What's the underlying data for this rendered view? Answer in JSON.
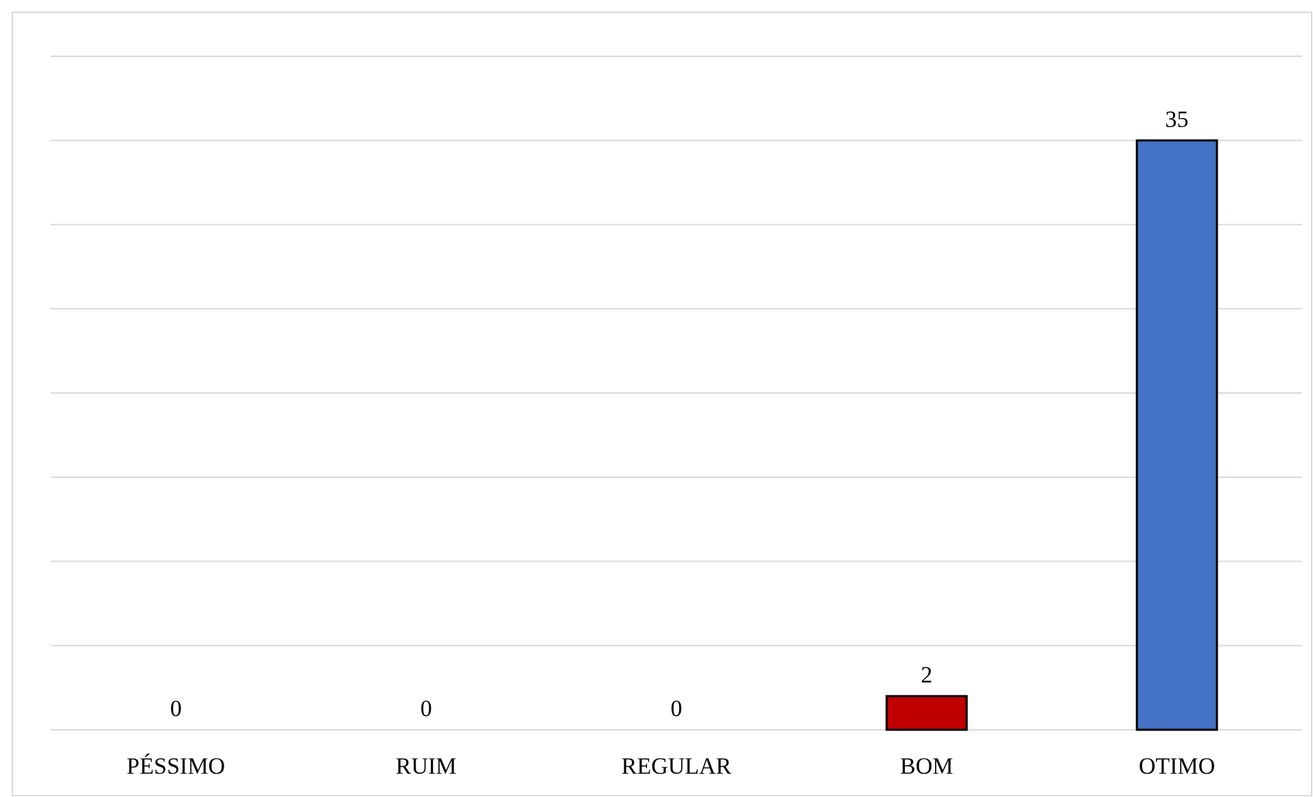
{
  "chart_data": {
    "type": "bar",
    "categories": [
      "PÉSSIMO",
      "RUIM",
      "REGULAR",
      "BOM",
      "OTIMO"
    ],
    "values": [
      0,
      0,
      0,
      2,
      35
    ],
    "colors": [
      "#4472c4",
      "#4472c4",
      "#4472c4",
      "#c00000",
      "#4472c4"
    ],
    "ylim": [
      0,
      40
    ],
    "yticks": [
      {
        "value": 0,
        "label": null
      },
      {
        "value": 5,
        "label": null
      },
      {
        "value": 10,
        "label": null
      },
      {
        "value": 15,
        "label": null
      },
      {
        "value": 20,
        "label": null
      },
      {
        "value": 25,
        "label": null
      },
      {
        "value": 30,
        "label": null
      },
      {
        "value": 35,
        "label": null
      },
      {
        "value": 40,
        "label": null
      }
    ],
    "grid": "y",
    "tick_labels": "x",
    "data_labels": true
  }
}
